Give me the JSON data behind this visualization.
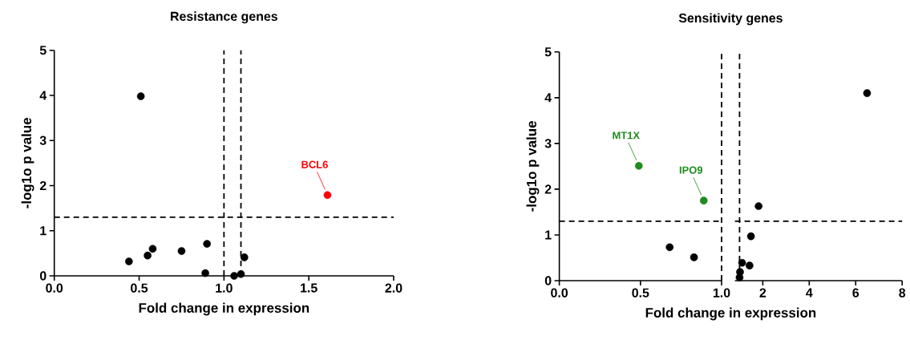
{
  "chart_data": [
    {
      "type": "scatter",
      "title": "Resistance genes",
      "xlabel": "Fold change in expression",
      "ylabel": "-log1o p value",
      "marker": "circle",
      "xlim": [
        0,
        2
      ],
      "ylim": [
        0,
        5
      ],
      "xticks": [
        {
          "value": 0,
          "label": "0.0"
        },
        {
          "value": 0.5,
          "label": "0.5"
        },
        {
          "value": 1,
          "label": "1.0"
        },
        {
          "value": 1.5,
          "label": "1.5"
        },
        {
          "value": 2,
          "label": "2.0"
        }
      ],
      "yticks": [
        0,
        1,
        2,
        3,
        4,
        5
      ],
      "ref_lines": [
        {
          "axis": "x",
          "value": 1.0,
          "line_style": "dashed"
        },
        {
          "axis": "x",
          "value": 1.1,
          "line_style": "dashed"
        },
        {
          "axis": "y",
          "value": 1.3,
          "line_style": "dashed"
        }
      ],
      "series": [
        {
          "color": "#000000",
          "x": [
            0.44,
            0.51,
            0.55,
            0.58,
            0.75,
            0.9,
            0.89,
            1.06,
            1.1,
            1.12
          ],
          "values": [
            0.32,
            3.98,
            0.45,
            0.6,
            0.55,
            0.71,
            0.06,
            0.0,
            0.04,
            0.41
          ]
        },
        {
          "name": "BCL6",
          "color": "#ff0000",
          "x": [
            1.61
          ],
          "values": [
            1.79
          ]
        }
      ]
    },
    {
      "type": "scatter",
      "title": "Sensitivity genes",
      "xlabel": "Fold change in expression",
      "ylabel": "-log1o p value",
      "marker": "circle",
      "xlim": [
        0,
        1
      ],
      "ylim": [
        0,
        5
      ],
      "xticks": [
        {
          "value": 0,
          "label": "0.0"
        },
        {
          "value": 0.5,
          "label": "0.5"
        },
        {
          "value": 1,
          "label": "1.0"
        }
      ],
      "yticks": [
        0,
        1,
        2,
        3,
        4,
        5
      ],
      "ref_lines": [
        {
          "axis": "x",
          "value": 1.0,
          "line_style": "dashed"
        },
        {
          "axis": "y",
          "value": 1.3,
          "line_style": "dashed"
        }
      ],
      "series": [
        {
          "color": "#000000",
          "x": [
            0.68,
            0.83
          ],
          "values": [
            0.73,
            0.51
          ]
        },
        {
          "name": "MT1X",
          "color": "#1e8c1e",
          "x": [
            0.49
          ],
          "values": [
            2.51
          ]
        },
        {
          "name": "IPO9",
          "color": "#1e8c1e",
          "x": [
            0.89
          ],
          "values": [
            1.75
          ]
        }
      ]
    },
    {
      "type": "scatter",
      "marker": "circle",
      "tick_labels": "x",
      "xlim": [
        0.8,
        8
      ],
      "ylim": [
        0,
        5
      ],
      "xticks": [
        2,
        4,
        6,
        8
      ],
      "ref_lines": [
        {
          "axis": "x",
          "value": 1.0,
          "line_style": "dashed"
        },
        {
          "axis": "y",
          "value": 1.3,
          "line_style": "dashed"
        }
      ],
      "series": [
        {
          "color": "#000000",
          "x": [
            6.49,
            1.82,
            1.49,
            1.11,
            1.43,
            1.02,
            1.0
          ],
          "values": [
            4.1,
            1.63,
            0.97,
            0.39,
            0.33,
            0.19,
            0.07
          ]
        }
      ]
    }
  ]
}
